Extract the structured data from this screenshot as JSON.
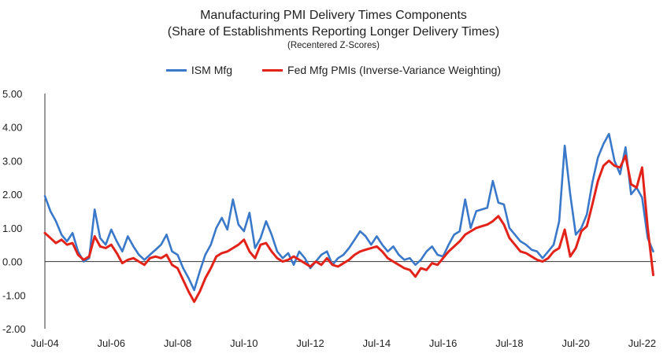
{
  "chart_data": {
    "type": "line",
    "title": "Manufacturing PMI Delivery Times Components",
    "subtitle": "(Share of Establishments Reporting Longer Delivery Times)",
    "note": "(Recentered Z-Scores)",
    "ylim": [
      -2.0,
      5.0
    ],
    "y_ticks": [
      "5.00",
      "4.00",
      "3.00",
      "2.00",
      "1.00",
      "0.00",
      "-1.00",
      "-2.00"
    ],
    "y_tick_values": [
      5,
      4,
      3,
      2,
      1,
      0,
      -1,
      -2
    ],
    "x_range": [
      "2004-07",
      "2022-12"
    ],
    "x_ticks": [
      "Jul-04",
      "Jul-06",
      "Jul-08",
      "Jul-10",
      "Jul-12",
      "Jul-14",
      "Jul-16",
      "Jul-18",
      "Jul-20",
      "Jul-22"
    ],
    "x_tick_dates": [
      "2004-07",
      "2006-07",
      "2008-07",
      "2010-07",
      "2012-07",
      "2014-07",
      "2016-07",
      "2018-07",
      "2020-07",
      "2022-07"
    ],
    "legend_position": "top",
    "gridlines": false,
    "series": [
      {
        "name": "ISM Mfg",
        "color": "#3a78c9",
        "points": [
          [
            "2004-07",
            1.95
          ],
          [
            "2004-09",
            1.5
          ],
          [
            "2004-11",
            1.2
          ],
          [
            "2005-01",
            0.8
          ],
          [
            "2005-03",
            0.6
          ],
          [
            "2005-05",
            0.85
          ],
          [
            "2005-07",
            0.3
          ],
          [
            "2005-09",
            0.0
          ],
          [
            "2005-11",
            0.1
          ],
          [
            "2006-01",
            1.55
          ],
          [
            "2006-03",
            0.7
          ],
          [
            "2006-05",
            0.5
          ],
          [
            "2006-07",
            0.95
          ],
          [
            "2006-09",
            0.6
          ],
          [
            "2006-11",
            0.3
          ],
          [
            "2007-01",
            0.75
          ],
          [
            "2007-03",
            0.45
          ],
          [
            "2007-05",
            0.2
          ],
          [
            "2007-07",
            0.05
          ],
          [
            "2007-09",
            0.2
          ],
          [
            "2007-11",
            0.35
          ],
          [
            "2008-01",
            0.5
          ],
          [
            "2008-03",
            0.8
          ],
          [
            "2008-05",
            0.3
          ],
          [
            "2008-07",
            0.2
          ],
          [
            "2008-09",
            -0.2
          ],
          [
            "2008-11",
            -0.5
          ],
          [
            "2009-01",
            -0.85
          ],
          [
            "2009-03",
            -0.3
          ],
          [
            "2009-05",
            0.2
          ],
          [
            "2009-07",
            0.5
          ],
          [
            "2009-09",
            1.0
          ],
          [
            "2009-11",
            1.3
          ],
          [
            "2010-01",
            0.95
          ],
          [
            "2010-03",
            1.85
          ],
          [
            "2010-05",
            1.1
          ],
          [
            "2010-07",
            0.9
          ],
          [
            "2010-09",
            1.45
          ],
          [
            "2010-11",
            0.4
          ],
          [
            "2011-01",
            0.7
          ],
          [
            "2011-03",
            1.2
          ],
          [
            "2011-05",
            0.8
          ],
          [
            "2011-07",
            0.3
          ],
          [
            "2011-09",
            0.1
          ],
          [
            "2011-11",
            0.25
          ],
          [
            "2012-01",
            -0.1
          ],
          [
            "2012-03",
            0.3
          ],
          [
            "2012-05",
            0.1
          ],
          [
            "2012-07",
            -0.2
          ],
          [
            "2012-09",
            0.0
          ],
          [
            "2012-11",
            0.2
          ],
          [
            "2013-01",
            0.3
          ],
          [
            "2013-03",
            -0.1
          ],
          [
            "2013-05",
            0.1
          ],
          [
            "2013-07",
            0.2
          ],
          [
            "2013-09",
            0.4
          ],
          [
            "2013-11",
            0.65
          ],
          [
            "2014-01",
            0.9
          ],
          [
            "2014-03",
            0.75
          ],
          [
            "2014-05",
            0.5
          ],
          [
            "2014-07",
            0.75
          ],
          [
            "2014-09",
            0.5
          ],
          [
            "2014-11",
            0.3
          ],
          [
            "2015-01",
            0.45
          ],
          [
            "2015-03",
            0.2
          ],
          [
            "2015-05",
            0.05
          ],
          [
            "2015-07",
            0.1
          ],
          [
            "2015-09",
            -0.1
          ],
          [
            "2015-11",
            0.05
          ],
          [
            "2016-01",
            0.3
          ],
          [
            "2016-03",
            0.45
          ],
          [
            "2016-05",
            0.2
          ],
          [
            "2016-07",
            0.15
          ],
          [
            "2016-09",
            0.5
          ],
          [
            "2016-11",
            0.8
          ],
          [
            "2017-01",
            0.9
          ],
          [
            "2017-03",
            1.85
          ],
          [
            "2017-05",
            1.0
          ],
          [
            "2017-07",
            1.5
          ],
          [
            "2017-09",
            1.55
          ],
          [
            "2017-11",
            1.6
          ],
          [
            "2018-01",
            2.4
          ],
          [
            "2018-03",
            1.75
          ],
          [
            "2018-05",
            1.7
          ],
          [
            "2018-07",
            1.0
          ],
          [
            "2018-09",
            0.8
          ],
          [
            "2018-11",
            0.6
          ],
          [
            "2019-01",
            0.5
          ],
          [
            "2019-03",
            0.35
          ],
          [
            "2019-05",
            0.3
          ],
          [
            "2019-07",
            0.1
          ],
          [
            "2019-09",
            0.3
          ],
          [
            "2019-11",
            0.5
          ],
          [
            "2020-01",
            1.2
          ],
          [
            "2020-03",
            3.45
          ],
          [
            "2020-05",
            2.0
          ],
          [
            "2020-07",
            0.8
          ],
          [
            "2020-09",
            1.0
          ],
          [
            "2020-11",
            1.4
          ],
          [
            "2021-01",
            2.35
          ],
          [
            "2021-03",
            3.1
          ],
          [
            "2021-05",
            3.5
          ],
          [
            "2021-07",
            3.8
          ],
          [
            "2021-09",
            3.0
          ],
          [
            "2021-11",
            2.6
          ],
          [
            "2022-01",
            3.4
          ],
          [
            "2022-03",
            2.0
          ],
          [
            "2022-05",
            2.2
          ],
          [
            "2022-07",
            1.9
          ],
          [
            "2022-09",
            0.7
          ],
          [
            "2022-11",
            0.3
          ]
        ]
      },
      {
        "name": "Fed Mfg PMIs (Inverse-Variance Weighting)",
        "color": "#e2231a",
        "points": [
          [
            "2004-07",
            0.85
          ],
          [
            "2004-09",
            0.7
          ],
          [
            "2004-11",
            0.55
          ],
          [
            "2005-01",
            0.65
          ],
          [
            "2005-03",
            0.5
          ],
          [
            "2005-05",
            0.55
          ],
          [
            "2005-07",
            0.2
          ],
          [
            "2005-09",
            0.05
          ],
          [
            "2005-11",
            0.15
          ],
          [
            "2006-01",
            0.75
          ],
          [
            "2006-03",
            0.45
          ],
          [
            "2006-05",
            0.4
          ],
          [
            "2006-07",
            0.5
          ],
          [
            "2006-09",
            0.25
          ],
          [
            "2006-11",
            -0.05
          ],
          [
            "2007-01",
            0.05
          ],
          [
            "2007-03",
            0.1
          ],
          [
            "2007-05",
            0.0
          ],
          [
            "2007-07",
            -0.1
          ],
          [
            "2007-09",
            0.1
          ],
          [
            "2007-11",
            0.15
          ],
          [
            "2008-01",
            0.1
          ],
          [
            "2008-03",
            0.2
          ],
          [
            "2008-05",
            -0.1
          ],
          [
            "2008-07",
            -0.2
          ],
          [
            "2008-09",
            -0.55
          ],
          [
            "2008-11",
            -0.9
          ],
          [
            "2009-01",
            -1.2
          ],
          [
            "2009-03",
            -0.9
          ],
          [
            "2009-05",
            -0.5
          ],
          [
            "2009-07",
            -0.2
          ],
          [
            "2009-09",
            0.15
          ],
          [
            "2009-11",
            0.25
          ],
          [
            "2010-01",
            0.3
          ],
          [
            "2010-03",
            0.4
          ],
          [
            "2010-05",
            0.5
          ],
          [
            "2010-07",
            0.65
          ],
          [
            "2010-09",
            0.3
          ],
          [
            "2010-11",
            0.1
          ],
          [
            "2011-01",
            0.5
          ],
          [
            "2011-03",
            0.55
          ],
          [
            "2011-05",
            0.3
          ],
          [
            "2011-07",
            0.1
          ],
          [
            "2011-09",
            0.0
          ],
          [
            "2011-11",
            0.05
          ],
          [
            "2012-01",
            0.15
          ],
          [
            "2012-03",
            0.05
          ],
          [
            "2012-05",
            -0.05
          ],
          [
            "2012-07",
            -0.15
          ],
          [
            "2012-09",
            0.0
          ],
          [
            "2012-11",
            -0.1
          ],
          [
            "2013-01",
            0.1
          ],
          [
            "2013-03",
            -0.1
          ],
          [
            "2013-05",
            -0.15
          ],
          [
            "2013-07",
            -0.05
          ],
          [
            "2013-09",
            0.05
          ],
          [
            "2013-11",
            0.2
          ],
          [
            "2014-01",
            0.3
          ],
          [
            "2014-03",
            0.35
          ],
          [
            "2014-05",
            0.4
          ],
          [
            "2014-07",
            0.45
          ],
          [
            "2014-09",
            0.3
          ],
          [
            "2014-11",
            0.1
          ],
          [
            "2015-01",
            0.0
          ],
          [
            "2015-03",
            -0.1
          ],
          [
            "2015-05",
            -0.2
          ],
          [
            "2015-07",
            -0.25
          ],
          [
            "2015-09",
            -0.45
          ],
          [
            "2015-11",
            -0.2
          ],
          [
            "2016-01",
            -0.25
          ],
          [
            "2016-03",
            -0.05
          ],
          [
            "2016-05",
            -0.1
          ],
          [
            "2016-07",
            0.1
          ],
          [
            "2016-09",
            0.3
          ],
          [
            "2016-11",
            0.45
          ],
          [
            "2017-01",
            0.6
          ],
          [
            "2017-03",
            0.8
          ],
          [
            "2017-05",
            0.9
          ],
          [
            "2017-07",
            1.0
          ],
          [
            "2017-09",
            1.05
          ],
          [
            "2017-11",
            1.1
          ],
          [
            "2018-01",
            1.2
          ],
          [
            "2018-03",
            1.35
          ],
          [
            "2018-05",
            1.1
          ],
          [
            "2018-07",
            0.7
          ],
          [
            "2018-09",
            0.5
          ],
          [
            "2018-11",
            0.3
          ],
          [
            "2019-01",
            0.25
          ],
          [
            "2019-03",
            0.15
          ],
          [
            "2019-05",
            0.05
          ],
          [
            "2019-07",
            0.0
          ],
          [
            "2019-09",
            0.1
          ],
          [
            "2019-11",
            0.3
          ],
          [
            "2020-01",
            0.4
          ],
          [
            "2020-03",
            0.95
          ],
          [
            "2020-05",
            0.15
          ],
          [
            "2020-07",
            0.4
          ],
          [
            "2020-09",
            0.9
          ],
          [
            "2020-11",
            1.05
          ],
          [
            "2021-01",
            1.7
          ],
          [
            "2021-03",
            2.4
          ],
          [
            "2021-05",
            2.85
          ],
          [
            "2021-07",
            3.0
          ],
          [
            "2021-09",
            2.85
          ],
          [
            "2021-11",
            2.8
          ],
          [
            "2022-01",
            3.15
          ],
          [
            "2022-03",
            2.3
          ],
          [
            "2022-05",
            2.2
          ],
          [
            "2022-07",
            2.8
          ],
          [
            "2022-09",
            1.0
          ],
          [
            "2022-11",
            -0.4
          ]
        ]
      }
    ]
  }
}
